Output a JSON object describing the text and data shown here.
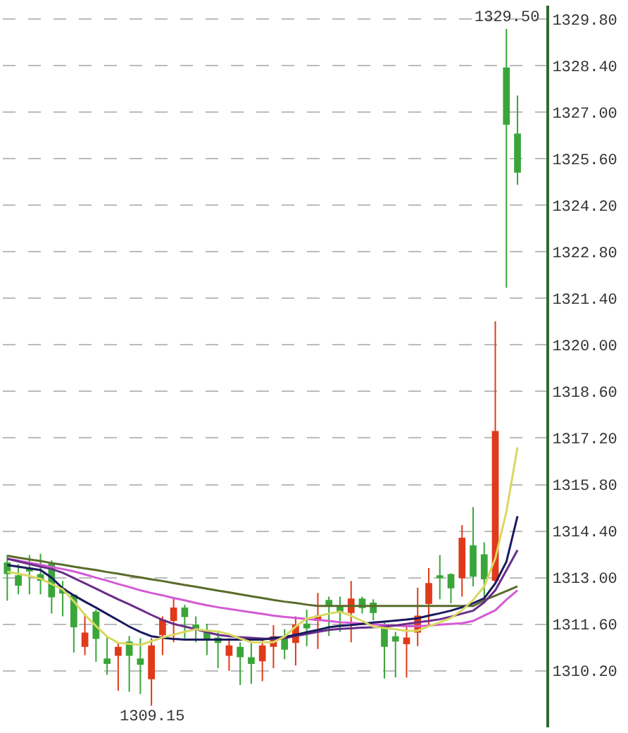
{
  "chart_data": {
    "type": "candlestick",
    "categories": [
      null,
      null,
      null,
      null,
      null,
      null,
      null,
      null,
      null,
      null,
      null,
      null,
      null,
      null,
      null,
      null,
      null,
      null,
      null,
      null,
      null,
      null,
      null,
      null,
      null,
      null,
      null,
      null,
      null,
      null,
      null,
      null,
      null,
      null,
      null,
      null,
      null,
      null,
      null,
      null,
      null,
      null,
      null,
      null,
      null,
      null,
      null
    ],
    "ohlc": [
      [
        1313.44,
        1313.68,
        1312.31,
        1313.13
      ],
      [
        1313.05,
        1313.4,
        1312.5,
        1312.78
      ],
      [
        1313.29,
        1313.68,
        1312.5,
        1313.21
      ],
      [
        1313.09,
        1313.72,
        1312.5,
        1312.93
      ],
      [
        1313.4,
        1313.52,
        1311.92,
        1312.43
      ],
      [
        1312.66,
        1312.9,
        1311.84,
        1312.54
      ],
      [
        1312.47,
        1312.47,
        1310.75,
        1311.53
      ],
      [
        1310.94,
        1311.92,
        1310.67,
        1311.33
      ],
      [
        1311.96,
        1312.04,
        1310.47,
        1311.18
      ],
      [
        1310.55,
        1311.25,
        1310.08,
        1310.43
      ],
      [
        1310.67,
        1311.02,
        1309.6,
        1310.9
      ],
      [
        1311.06,
        1311.25,
        1309.57,
        1310.67
      ],
      [
        1310.55,
        1311.18,
        1309.5,
        1310.4
      ],
      [
        1309.97,
        1311.18,
        1309.15,
        1310.94
      ],
      [
        1311.29,
        1311.84,
        1310.67,
        1311.72
      ],
      [
        1311.72,
        1312.39,
        1311.06,
        1312.08
      ],
      [
        1312.08,
        1312.19,
        1311.18,
        1311.84
      ],
      [
        1311.57,
        1311.84,
        1311.06,
        1311.49
      ],
      [
        1311.41,
        1311.61,
        1310.67,
        1311.18
      ],
      [
        1311.18,
        1311.37,
        1310.28,
        1311.06
      ],
      [
        1310.67,
        1311.18,
        1310.2,
        1310.94
      ],
      [
        1310.9,
        1311.06,
        1309.77,
        1310.63
      ],
      [
        1310.59,
        1311.06,
        1309.81,
        1310.43
      ],
      [
        1310.51,
        1311.14,
        1309.89,
        1310.94
      ],
      [
        1310.94,
        1311.57,
        1310.28,
        1311.22
      ],
      [
        1311.18,
        1311.45,
        1310.55,
        1310.86
      ],
      [
        1311.06,
        1311.84,
        1310.36,
        1311.57
      ],
      [
        1311.6,
        1312.04,
        1310.94,
        1311.5
      ],
      [
        1311.72,
        1312.54,
        1310.86,
        1311.84
      ],
      [
        1312.31,
        1312.43,
        1311.25,
        1312.15
      ],
      [
        1312.11,
        1312.43,
        1311.37,
        1311.96
      ],
      [
        1311.96,
        1312.9,
        1311.06,
        1312.35
      ],
      [
        1312.35,
        1312.43,
        1311.92,
        1312.11
      ],
      [
        1312.23,
        1312.35,
        1311.72,
        1311.96
      ],
      [
        1311.53,
        1311.65,
        1309.97,
        1310.94
      ],
      [
        1311.22,
        1311.37,
        1310.0,
        1311.1
      ],
      [
        1311.02,
        1311.53,
        1310.0,
        1311.18
      ],
      [
        1311.37,
        1312.7,
        1310.94,
        1311.84
      ],
      [
        1312.23,
        1313.29,
        1311.57,
        1312.82
      ],
      [
        1313.05,
        1313.68,
        1312.35,
        1313.01
      ],
      [
        1313.09,
        1313.13,
        1312.23,
        1312.7
      ],
      [
        1313.01,
        1314.58,
        1312.43,
        1314.18
      ],
      [
        1313.95,
        1315.12,
        1312.74,
        1313.05
      ],
      [
        1313.68,
        1314.06,
        1312.35,
        1312.97
      ],
      [
        1312.93,
        1320.71,
        1312.85,
        1317.39
      ],
      [
        1328.32,
        1329.5,
        1321.72,
        1326.64
      ],
      [
        1326.33,
        1327.5,
        1324.81,
        1325.2
      ]
    ],
    "colors": [
      "#3aa63a",
      "#3aa63a",
      "#3aa63a",
      "#3aa63a",
      "#3aa63a",
      "#3aa63a",
      "#3aa63a",
      "#e03a1a",
      "#3aa63a",
      "#3aa63a",
      "#e03a1a",
      "#3aa63a",
      "#3aa63a",
      "#e03a1a",
      "#e03a1a",
      "#e03a1a",
      "#3aa63a",
      "#3aa63a",
      "#3aa63a",
      "#3aa63a",
      "#e03a1a",
      "#3aa63a",
      "#3aa63a",
      "#e03a1a",
      "#e03a1a",
      "#3aa63a",
      "#e03a1a",
      "#3aa63a",
      "#e03a1a",
      "#3aa63a",
      "#3aa63a",
      "#e03a1a",
      "#3aa63a",
      "#3aa63a",
      "#3aa63a",
      "#3aa63a",
      "#e03a1a",
      "#e03a1a",
      "#e03a1a",
      "#3aa63a",
      "#3aa63a",
      "#e03a1a",
      "#3aa63a",
      "#3aa63a",
      "#e03a1a",
      "#3aa63a",
      "#3aa63a"
    ],
    "series": [
      {
        "type": "line",
        "color": "#5a6b2a",
        "values": [
          1313.66,
          1313.6,
          1313.55,
          1313.5,
          1313.44,
          1313.39,
          1313.33,
          1313.28,
          1313.23,
          1313.17,
          1313.12,
          1313.06,
          1313.01,
          1312.95,
          1312.9,
          1312.84,
          1312.78,
          1312.73,
          1312.67,
          1312.61,
          1312.56,
          1312.5,
          1312.44,
          1312.39,
          1312.33,
          1312.28,
          1312.24,
          1312.19,
          1312.15,
          1312.15,
          1312.15,
          1312.15,
          1312.15,
          1312.15,
          1312.15,
          1312.15,
          1312.15,
          1312.15,
          1312.15,
          1312.15,
          1312.15,
          1312.15,
          1312.15,
          1312.32,
          1312.46,
          1312.6,
          1312.74
        ]
      },
      {
        "type": "line",
        "color": "#d45ad4",
        "values": [
          1313.57,
          1313.51,
          1313.45,
          1313.39,
          1313.32,
          1313.26,
          1313.19,
          1313.1,
          1313.0,
          1312.91,
          1312.81,
          1312.72,
          1312.62,
          1312.54,
          1312.47,
          1312.39,
          1312.32,
          1312.24,
          1312.17,
          1312.11,
          1312.06,
          1312.01,
          1311.96,
          1311.91,
          1311.86,
          1311.82,
          1311.79,
          1311.76,
          1311.73,
          1311.7,
          1311.66,
          1311.64,
          1311.62,
          1311.6,
          1311.58,
          1311.56,
          1311.54,
          1311.54,
          1311.56,
          1311.59,
          1311.61,
          1311.63,
          1311.7,
          1311.86,
          1312.02,
          1312.34,
          1312.62
        ]
      },
      {
        "type": "line",
        "color": "#6a2d8a",
        "values": [
          1313.57,
          1313.49,
          1313.41,
          1313.33,
          1313.26,
          1313.15,
          1312.99,
          1312.83,
          1312.67,
          1312.51,
          1312.35,
          1312.2,
          1312.04,
          1311.88,
          1311.73,
          1311.61,
          1311.53,
          1311.45,
          1311.36,
          1311.28,
          1311.24,
          1311.21,
          1311.19,
          1311.17,
          1311.15,
          1311.18,
          1311.25,
          1311.31,
          1311.37,
          1311.43,
          1311.46,
          1311.48,
          1311.5,
          1311.51,
          1311.53,
          1311.56,
          1311.61,
          1311.66,
          1311.7,
          1311.75,
          1311.83,
          1311.92,
          1312.01,
          1312.26,
          1312.62,
          1313.22,
          1313.83
        ]
      },
      {
        "type": "line",
        "color": "#1a1a5e",
        "values": [
          1313.38,
          1313.33,
          1313.28,
          1313.23,
          1313.0,
          1312.68,
          1312.47,
          1312.28,
          1312.1,
          1311.91,
          1311.72,
          1311.53,
          1311.37,
          1311.24,
          1311.19,
          1311.16,
          1311.14,
          1311.14,
          1311.14,
          1311.14,
          1311.14,
          1311.14,
          1311.14,
          1311.14,
          1311.19,
          1311.22,
          1311.28,
          1311.36,
          1311.43,
          1311.51,
          1311.55,
          1311.58,
          1311.61,
          1311.65,
          1311.68,
          1311.71,
          1311.74,
          1311.78,
          1311.86,
          1311.93,
          1312.01,
          1312.11,
          1312.23,
          1312.38,
          1312.83,
          1313.48,
          1314.85
        ]
      },
      {
        "type": "line",
        "color": "#d8d860",
        "values": [
          1313.18,
          1313.12,
          1313.05,
          1312.97,
          1312.81,
          1312.65,
          1312.29,
          1311.88,
          1311.55,
          1311.23,
          1311.04,
          1311.01,
          1310.98,
          1311.09,
          1311.2,
          1311.29,
          1311.37,
          1311.45,
          1311.41,
          1311.38,
          1311.3,
          1311.17,
          1311.06,
          1311.06,
          1311.06,
          1311.23,
          1311.53,
          1311.77,
          1311.84,
          1311.92,
          1311.98,
          1311.85,
          1311.7,
          1311.53,
          1311.49,
          1311.45,
          1311.4,
          1311.41,
          1311.54,
          1311.66,
          1311.79,
          1312.02,
          1312.33,
          1312.74,
          1313.58,
          1314.99,
          1316.92
        ]
      }
    ],
    "ylim": [
      1308.5,
      1330.2
    ],
    "yticks": [
      {
        "value": 1310.2,
        "label": "1310.20"
      },
      {
        "value": 1311.6,
        "label": "1311.60"
      },
      {
        "value": 1313.0,
        "label": "1313.00"
      },
      {
        "value": 1314.4,
        "label": "1314.40"
      },
      {
        "value": 1315.8,
        "label": "1315.80"
      },
      {
        "value": 1317.2,
        "label": "1317.20"
      },
      {
        "value": 1318.6,
        "label": "1318.60"
      },
      {
        "value": 1320.0,
        "label": "1320.00"
      },
      {
        "value": 1321.4,
        "label": "1321.40"
      },
      {
        "value": 1322.8,
        "label": "1322.80"
      },
      {
        "value": 1324.2,
        "label": "1324.20"
      },
      {
        "value": 1325.6,
        "label": "1325.60"
      },
      {
        "value": 1327.0,
        "label": "1327.00"
      },
      {
        "value": 1328.4,
        "label": "1328.40"
      },
      {
        "value": 1329.8,
        "label": "1329.80"
      }
    ],
    "annotations": [
      {
        "text": "1329.50",
        "y": 1329.5
      },
      {
        "text": "1309.15",
        "y": 1309.15
      }
    ],
    "tick_labels": "y",
    "grid": "y",
    "legend": false,
    "marker": "none",
    "line_style": "solid"
  }
}
